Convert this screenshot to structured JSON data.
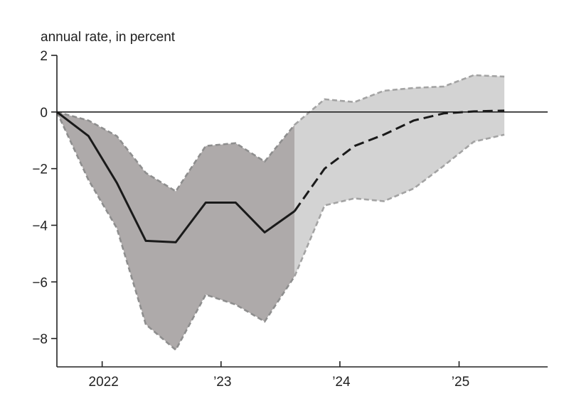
{
  "chart_data": {
    "type": "line",
    "title": "",
    "ylabel": "annual rate, in percent",
    "xlabel": "",
    "ylim": [
      -9,
      2
    ],
    "xlim": [
      "2021-08-15",
      "2025-09-30"
    ],
    "y_ticks": [
      2,
      0,
      -2,
      -4,
      -6,
      -8
    ],
    "y_tick_labels": [
      "2",
      "0",
      "−2",
      "−4",
      "−6",
      "−8"
    ],
    "x_ticks": [
      {
        "date": "2022-01-01",
        "label": "2022"
      },
      {
        "date": "2023-01-01",
        "label": "’23"
      },
      {
        "date": "2024-01-01",
        "label": "’24"
      },
      {
        "date": "2025-01-01",
        "label": "’25"
      }
    ],
    "reference_line_y": 0,
    "grid": false,
    "series": [
      {
        "style": "solid",
        "color": "#1a1a1a",
        "points": [
          {
            "x": "2021-08-15",
            "y": 0.0
          },
          {
            "x": "2021-11-20",
            "y": -0.85
          },
          {
            "x": "2022-02-15",
            "y": -2.5
          },
          {
            "x": "2022-05-15",
            "y": -4.55
          },
          {
            "x": "2022-08-15",
            "y": -4.6
          },
          {
            "x": "2022-11-15",
            "y": -3.2
          },
          {
            "x": "2023-02-15",
            "y": -3.2
          },
          {
            "x": "2023-05-15",
            "y": -4.25
          },
          {
            "x": "2023-08-15",
            "y": -3.5
          }
        ]
      },
      {
        "style": "dashed",
        "color": "#1a1a1a",
        "points": [
          {
            "x": "2023-08-15",
            "y": -3.5
          },
          {
            "x": "2023-11-15",
            "y": -2.0
          },
          {
            "x": "2024-02-15",
            "y": -1.2
          },
          {
            "x": "2024-05-15",
            "y": -0.8
          },
          {
            "x": "2024-08-15",
            "y": -0.3
          },
          {
            "x": "2024-11-15",
            "y": -0.05
          },
          {
            "x": "2025-02-15",
            "y": 0.02
          },
          {
            "x": "2025-05-20",
            "y": 0.05
          }
        ]
      }
    ],
    "bands": [
      {
        "fill": "#aeaaaa",
        "edge_color": "#8e8e8e",
        "upper": [
          {
            "x": "2021-08-15",
            "y": 0.0
          },
          {
            "x": "2021-11-20",
            "y": -0.3
          },
          {
            "x": "2022-02-15",
            "y": -0.85
          },
          {
            "x": "2022-05-15",
            "y": -2.15
          },
          {
            "x": "2022-08-15",
            "y": -2.8
          },
          {
            "x": "2022-11-15",
            "y": -1.2
          },
          {
            "x": "2023-02-15",
            "y": -1.1
          },
          {
            "x": "2023-05-15",
            "y": -1.75
          },
          {
            "x": "2023-08-15",
            "y": -0.45
          }
        ],
        "lower": [
          {
            "x": "2021-08-15",
            "y": 0.0
          },
          {
            "x": "2021-11-20",
            "y": -2.4
          },
          {
            "x": "2022-02-15",
            "y": -4.1
          },
          {
            "x": "2022-05-15",
            "y": -7.5
          },
          {
            "x": "2022-08-15",
            "y": -8.4
          },
          {
            "x": "2022-11-15",
            "y": -6.45
          },
          {
            "x": "2023-02-15",
            "y": -6.8
          },
          {
            "x": "2023-05-15",
            "y": -7.4
          },
          {
            "x": "2023-08-15",
            "y": -5.8
          }
        ]
      },
      {
        "fill": "#d3d3d3",
        "edge_color": "#a3a3a3",
        "upper": [
          {
            "x": "2023-08-15",
            "y": -0.45
          },
          {
            "x": "2023-11-15",
            "y": 0.45
          },
          {
            "x": "2024-02-15",
            "y": 0.35
          },
          {
            "x": "2024-05-15",
            "y": 0.75
          },
          {
            "x": "2024-08-15",
            "y": 0.85
          },
          {
            "x": "2024-11-15",
            "y": 0.9
          },
          {
            "x": "2025-02-15",
            "y": 1.3
          },
          {
            "x": "2025-05-20",
            "y": 1.25
          }
        ],
        "lower": [
          {
            "x": "2023-08-15",
            "y": -5.8
          },
          {
            "x": "2023-11-15",
            "y": -3.3
          },
          {
            "x": "2024-02-15",
            "y": -3.05
          },
          {
            "x": "2024-05-15",
            "y": -3.15
          },
          {
            "x": "2024-08-15",
            "y": -2.7
          },
          {
            "x": "2024-11-15",
            "y": -1.9
          },
          {
            "x": "2025-02-15",
            "y": -1.05
          },
          {
            "x": "2025-05-20",
            "y": -0.8
          }
        ]
      }
    ]
  }
}
